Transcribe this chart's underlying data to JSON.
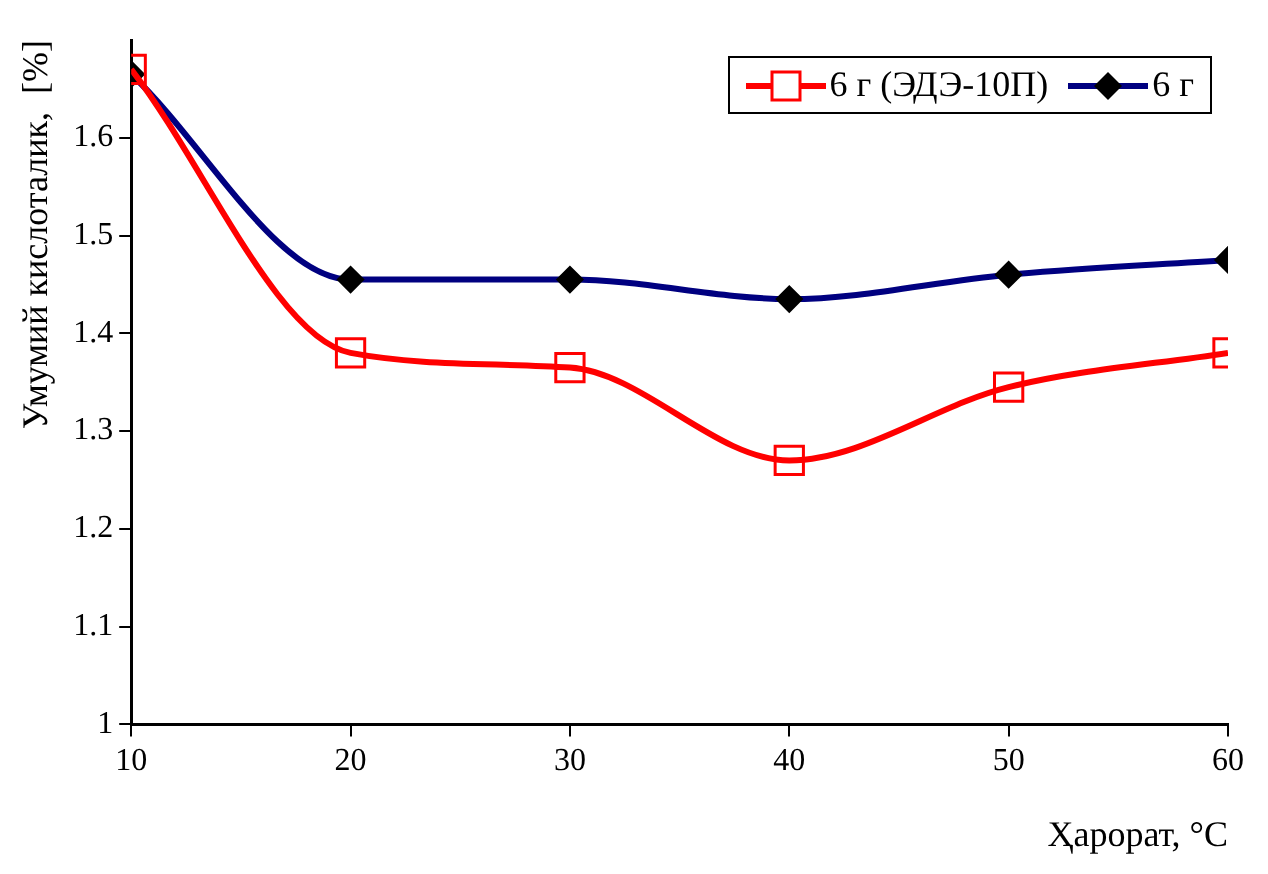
{
  "chart_data": {
    "type": "line",
    "xlabel": "Ҳарорат, °C",
    "ylabel": "Умумий кислоталик,  [%]",
    "x": [
      10,
      20,
      30,
      40,
      50,
      60
    ],
    "series": [
      {
        "name": "6 г (ЭДЭ-10П)",
        "color": "#ff0000",
        "marker": "square",
        "values": [
          1.67,
          1.38,
          1.365,
          1.27,
          1.345,
          1.38
        ]
      },
      {
        "name": "6 г",
        "color": "#000080",
        "marker": "diamond",
        "values": [
          1.665,
          1.455,
          1.455,
          1.435,
          1.46,
          1.475
        ]
      }
    ],
    "xlim": [
      10,
      60
    ],
    "xticks": [
      10,
      20,
      30,
      40,
      50,
      60
    ],
    "ylim": [
      1,
      1.7
    ],
    "yticks": [
      1,
      1.1,
      1.2,
      1.3,
      1.4,
      1.5,
      1.6
    ],
    "grid": false,
    "legend": "top right",
    "line_style": "solid"
  }
}
